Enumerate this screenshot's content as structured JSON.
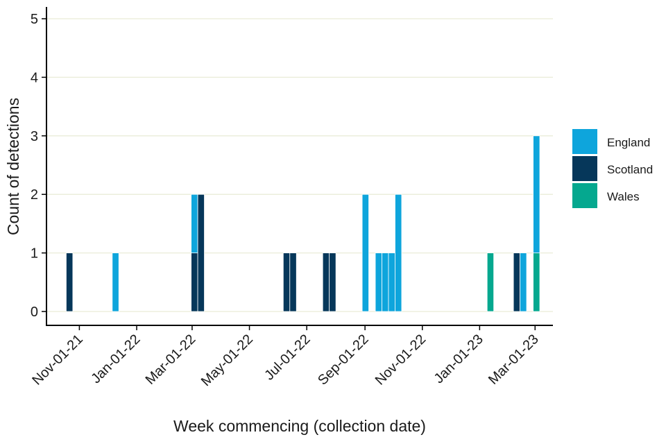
{
  "chart_data": {
    "type": "bar",
    "stacked": true,
    "xlabel": "Week commencing (collection date)",
    "ylabel": "Count of detections",
    "x_tick_labels": [
      "Nov-01-21",
      "Jan-01-22",
      "Mar-01-22",
      "May-01-22",
      "Jul-01-22",
      "Sep-01-22",
      "Nov-01-22",
      "Jan-01-23",
      "Mar-01-23"
    ],
    "x_tick_dates": [
      "2021-11-01",
      "2022-01-01",
      "2022-03-01",
      "2022-05-01",
      "2022-07-01",
      "2022-09-01",
      "2022-11-01",
      "2023-01-01",
      "2023-03-01"
    ],
    "xlim": [
      "2021-09-27",
      "2023-03-20"
    ],
    "ylim": [
      0,
      5
    ],
    "y_ticks": [
      0,
      1,
      2,
      3,
      4,
      5
    ],
    "grid": "horizontal",
    "legend_position": "right",
    "series": [
      {
        "name": "England",
        "color": "#0ea5dc"
      },
      {
        "name": "Scotland",
        "color": "#06375a"
      },
      {
        "name": "Wales",
        "color": "#05a88f"
      }
    ],
    "weeks": [
      {
        "week": "2021-10-18",
        "England": 0,
        "Scotland": 1,
        "Wales": 0
      },
      {
        "week": "2021-12-06",
        "England": 1,
        "Scotland": 0,
        "Wales": 0
      },
      {
        "week": "2022-02-28",
        "England": 1,
        "Scotland": 1,
        "Wales": 0
      },
      {
        "week": "2022-03-07",
        "England": 0,
        "Scotland": 2,
        "Wales": 0
      },
      {
        "week": "2022-06-06",
        "England": 0,
        "Scotland": 1,
        "Wales": 0
      },
      {
        "week": "2022-06-13",
        "England": 0,
        "Scotland": 1,
        "Wales": 0
      },
      {
        "week": "2022-07-18",
        "England": 0,
        "Scotland": 1,
        "Wales": 0
      },
      {
        "week": "2022-07-25",
        "England": 0,
        "Scotland": 1,
        "Wales": 0
      },
      {
        "week": "2022-08-29",
        "England": 2,
        "Scotland": 0,
        "Wales": 0
      },
      {
        "week": "2022-09-12",
        "England": 1,
        "Scotland": 0,
        "Wales": 0
      },
      {
        "week": "2022-09-19",
        "England": 1,
        "Scotland": 0,
        "Wales": 0
      },
      {
        "week": "2022-09-26",
        "England": 1,
        "Scotland": 0,
        "Wales": 0
      },
      {
        "week": "2022-10-03",
        "England": 2,
        "Scotland": 0,
        "Wales": 0
      },
      {
        "week": "2023-01-09",
        "England": 0,
        "Scotland": 0,
        "Wales": 1
      },
      {
        "week": "2023-02-06",
        "England": 0,
        "Scotland": 1,
        "Wales": 0
      },
      {
        "week": "2023-02-13",
        "England": 1,
        "Scotland": 0,
        "Wales": 0
      },
      {
        "week": "2023-02-27",
        "England": 2,
        "Scotland": 0,
        "Wales": 1
      }
    ]
  }
}
